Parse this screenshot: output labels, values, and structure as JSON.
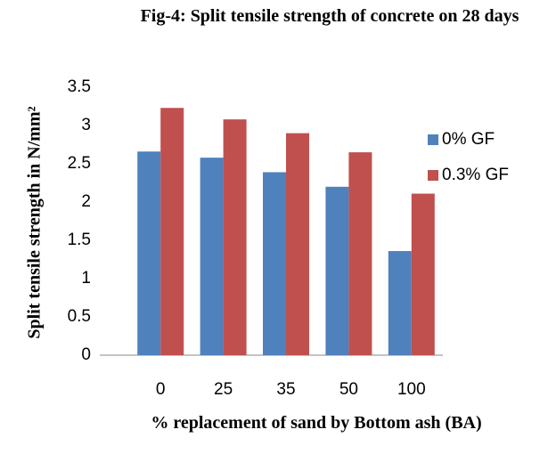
{
  "chart_data": {
    "type": "bar",
    "title": "Fig-4: Split tensile strength of concrete on 28 days",
    "xlabel": "% replacement of sand by Bottom ash (BA)",
    "ylabel": "Split tensile strength in N/mm²",
    "categories": [
      "0",
      "25",
      "35",
      "50",
      "100"
    ],
    "series": [
      {
        "name": "0% GF",
        "color": "#4f81bd",
        "values": [
          2.66,
          2.58,
          2.39,
          2.2,
          1.36
        ]
      },
      {
        "name": "0.3% GF",
        "color": "#c0504d",
        "values": [
          3.23,
          3.08,
          2.9,
          2.65,
          2.11
        ]
      }
    ],
    "ylim": [
      0,
      3.5
    ],
    "yticks": [
      0,
      0.5,
      1,
      1.5,
      2,
      2.5,
      3,
      3.5
    ],
    "grid": false,
    "legend": "right"
  }
}
